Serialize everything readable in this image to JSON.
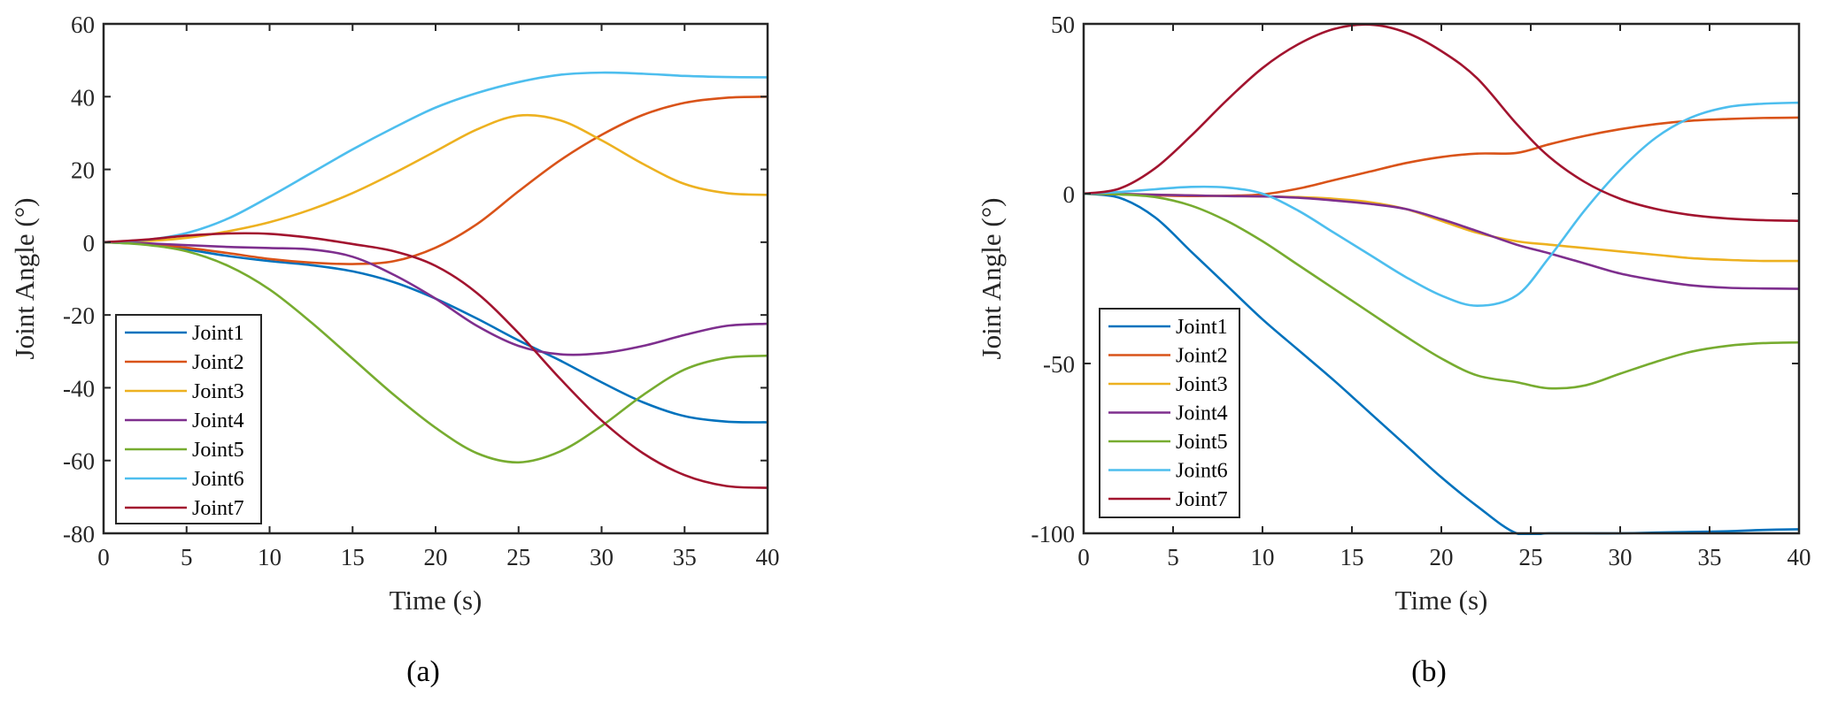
{
  "chart_data": [
    {
      "type": "line",
      "panel_label": "(a)",
      "title": "",
      "xlabel": "Time (s)",
      "ylabel": "Joint Angle (°)",
      "xlim": [
        0,
        40
      ],
      "ylim": [
        -80,
        60
      ],
      "xticks": [
        0,
        5,
        10,
        15,
        20,
        25,
        30,
        35,
        40
      ],
      "yticks": [
        -80,
        -60,
        -40,
        -20,
        0,
        20,
        40,
        60
      ],
      "grid": false,
      "legend_position": "bottom-left",
      "x": [
        0,
        2.5,
        5,
        7.5,
        10,
        12.5,
        15,
        17.5,
        20,
        22.5,
        25,
        27.5,
        30,
        32.5,
        35,
        37.5,
        40
      ],
      "series": [
        {
          "name": "Joint1",
          "color": "#0072BD",
          "values": [
            0,
            -0.6,
            -2.0,
            -3.8,
            -5.2,
            -6.3,
            -8.0,
            -11.0,
            -15.5,
            -21.0,
            -27.0,
            -32.5,
            -38.5,
            -44.0,
            -47.8,
            -49.3,
            -49.5
          ]
        },
        {
          "name": "Joint2",
          "color": "#D95319",
          "values": [
            0,
            -0.4,
            -1.5,
            -3.0,
            -4.6,
            -5.6,
            -6.0,
            -5.2,
            -1.5,
            5.0,
            14.0,
            22.5,
            29.5,
            35.0,
            38.3,
            39.7,
            40.0
          ]
        },
        {
          "name": "Joint3",
          "color": "#EDB120",
          "values": [
            0,
            0.3,
            1.2,
            3.0,
            5.5,
            9.0,
            13.5,
            19.0,
            25.0,
            31.0,
            34.8,
            33.5,
            28.0,
            21.5,
            16.0,
            13.5,
            13.0
          ]
        },
        {
          "name": "Joint4",
          "color": "#7E2F8E",
          "values": [
            0,
            -0.3,
            -0.8,
            -1.3,
            -1.6,
            -2.0,
            -4.0,
            -9.0,
            -15.5,
            -23.0,
            -28.5,
            -30.8,
            -30.5,
            -28.5,
            -25.5,
            -23.0,
            -22.4
          ]
        },
        {
          "name": "Joint5",
          "color": "#77AC30",
          "values": [
            0,
            -0.7,
            -2.5,
            -6.5,
            -13.0,
            -22.0,
            -32.0,
            -42.0,
            -51.0,
            -58.0,
            -60.5,
            -57.5,
            -50.5,
            -42.0,
            -35.0,
            -31.8,
            -31.2
          ]
        },
        {
          "name": "Joint6",
          "color": "#4DBEEE",
          "values": [
            0,
            0.6,
            2.5,
            6.5,
            12.5,
            19.0,
            25.5,
            31.5,
            37.0,
            41.0,
            44.0,
            46.0,
            46.6,
            46.3,
            45.7,
            45.4,
            45.3
          ]
        },
        {
          "name": "Joint7",
          "color": "#A2142F",
          "values": [
            0,
            0.7,
            1.8,
            2.4,
            2.3,
            1.2,
            -0.5,
            -2.5,
            -6.5,
            -14.0,
            -25.0,
            -37.5,
            -49.0,
            -58.0,
            -64.0,
            -67.0,
            -67.5
          ]
        }
      ]
    },
    {
      "type": "line",
      "panel_label": "(b)",
      "title": "",
      "xlabel": "Time (s)",
      "ylabel": "Joint Angle (°)",
      "xlim": [
        0,
        40
      ],
      "ylim": [
        -100,
        50
      ],
      "xticks": [
        0,
        5,
        10,
        15,
        20,
        25,
        30,
        35,
        40
      ],
      "yticks": [
        -100,
        -50,
        0,
        50
      ],
      "grid": false,
      "legend_position": "bottom-left",
      "x": [
        0,
        2,
        4,
        6,
        8,
        10,
        12,
        14,
        16,
        18,
        20,
        22,
        24.2,
        26,
        28,
        30,
        32,
        34,
        36,
        38,
        40
      ],
      "series": [
        {
          "name": "Joint1",
          "color": "#0072BD",
          "values": [
            0,
            -1.2,
            -7,
            -17,
            -27,
            -37,
            -46,
            -55,
            -64.5,
            -74,
            -83.5,
            -92,
            -100,
            -100,
            -100,
            -100,
            -99.8,
            -99.6,
            -99.4,
            -99.0,
            -98.8
          ]
        },
        {
          "name": "Joint2",
          "color": "#D95319",
          "values": [
            0,
            -0.2,
            -0.5,
            -0.7,
            -0.6,
            -0.2,
            1.5,
            4.0,
            6.5,
            9.0,
            10.8,
            11.8,
            12.0,
            14.5,
            17.0,
            19.0,
            20.5,
            21.5,
            22.0,
            22.3,
            22.4
          ]
        },
        {
          "name": "Joint3",
          "color": "#EDB120",
          "values": [
            0,
            -0.1,
            -0.3,
            -0.5,
            -0.7,
            -0.8,
            -1.0,
            -1.5,
            -2.5,
            -4.5,
            -8.0,
            -11.5,
            -14.0,
            -15.0,
            -16.0,
            -17.0,
            -18.0,
            -19.0,
            -19.5,
            -19.8,
            -19.8
          ]
        },
        {
          "name": "Joint4",
          "color": "#7E2F8E",
          "values": [
            0,
            -0.1,
            -0.3,
            -0.5,
            -0.7,
            -0.8,
            -1.2,
            -2.0,
            -3.0,
            -4.5,
            -7.5,
            -11.0,
            -15.0,
            -17.5,
            -20.5,
            -23.5,
            -25.5,
            -27.0,
            -27.7,
            -27.9,
            -28.0
          ]
        },
        {
          "name": "Joint5",
          "color": "#77AC30",
          "values": [
            0,
            -0.2,
            -1.0,
            -3.5,
            -8,
            -14,
            -21,
            -28,
            -35,
            -42,
            -48.5,
            -53.5,
            -55.5,
            -57.3,
            -56.5,
            -53.0,
            -49.5,
            -46.5,
            -44.8,
            -44.0,
            -43.8
          ]
        },
        {
          "name": "Joint6",
          "color": "#4DBEEE",
          "values": [
            0,
            0.5,
            1.3,
            2.0,
            1.8,
            0,
            -5,
            -11.5,
            -18,
            -24.5,
            -30,
            -33,
            -30,
            -19,
            -5,
            7,
            16.5,
            22.5,
            25.5,
            26.5,
            26.8
          ]
        },
        {
          "name": "Joint7",
          "color": "#A2142F",
          "values": [
            0,
            1.5,
            7.5,
            17,
            27.5,
            37,
            44,
            48.5,
            49.8,
            47.5,
            42,
            34,
            20.6,
            11,
            3.5,
            -1.5,
            -4.5,
            -6.3,
            -7.3,
            -7.8,
            -8.0
          ]
        }
      ]
    }
  ]
}
